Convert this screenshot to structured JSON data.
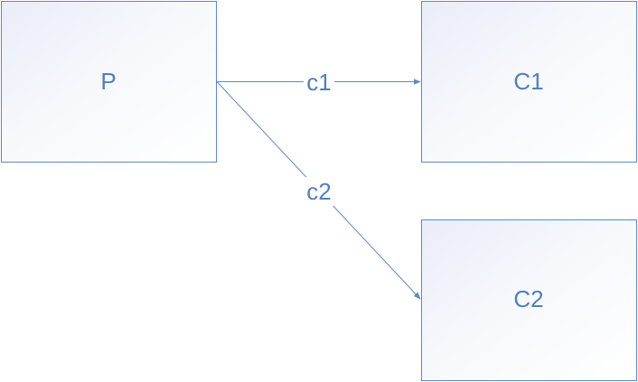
{
  "nodes": {
    "p": {
      "label": "P"
    },
    "c1": {
      "label": "C1"
    },
    "c2": {
      "label": "C2"
    }
  },
  "edges": {
    "c1": {
      "label": "c1",
      "from": "P",
      "to": "C1"
    },
    "c2": {
      "label": "c2",
      "from": "P",
      "to": "C2"
    }
  },
  "colors": {
    "stroke": "#5b8ac7",
    "text": "#4f7fbf",
    "fill_top": "#eef1fa",
    "fill_bottom": "#ffffff"
  }
}
